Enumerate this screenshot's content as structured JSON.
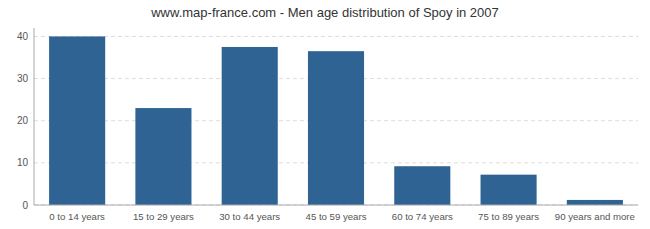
{
  "chart_data": {
    "type": "bar",
    "title": "www.map-france.com - Men age distribution of Spoy in 2007",
    "categories": [
      "0 to 14 years",
      "15 to 29 years",
      "30 to 44 years",
      "45 to 59 years",
      "60 to 74 years",
      "75 to 89 years",
      "90 years and more"
    ],
    "values": [
      40,
      23,
      37.5,
      36.5,
      9.2,
      7.2,
      1.2
    ],
    "color": "#2e6393",
    "ylim": [
      0,
      42
    ],
    "yticks": [
      0,
      10,
      20,
      30,
      40
    ],
    "grid": true
  }
}
